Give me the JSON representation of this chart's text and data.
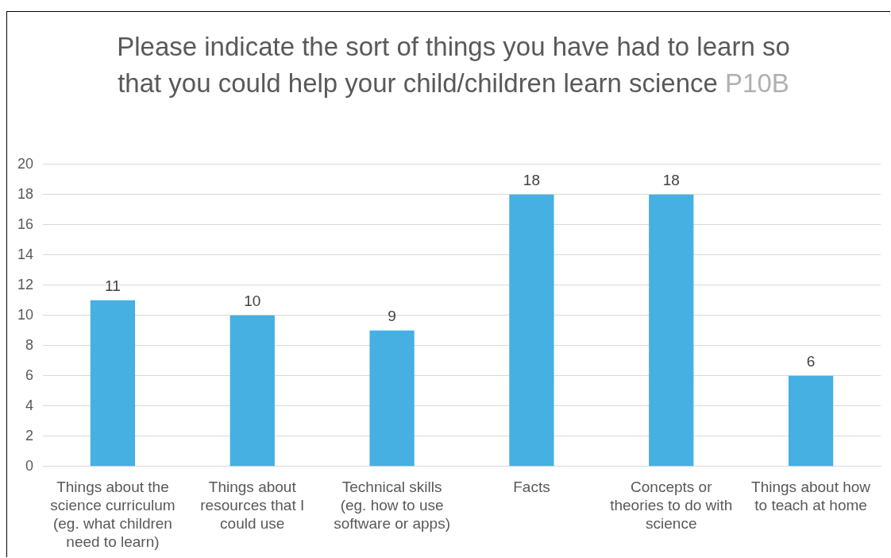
{
  "chart_data": {
    "type": "bar",
    "title": "Please indicate the sort of things you have had to learn so that you could help your child/children learn science",
    "annotations": [
      "P10B"
    ],
    "categories": [
      "Things about the science curriculum (eg. what children need to learn)",
      "Things about resources that I could use",
      "Technical skills (eg. how to use software or apps)",
      "Facts",
      "Concepts or theories to do with science",
      "Things about how to teach at home"
    ],
    "values": [
      11,
      10,
      9,
      18,
      18,
      6
    ],
    "color": "#45b0e1",
    "ylim": [
      0,
      20
    ],
    "yticks": [
      0,
      2,
      4,
      6,
      8,
      10,
      12,
      14,
      16,
      18,
      20
    ],
    "grid": "y",
    "data_labels": true
  }
}
